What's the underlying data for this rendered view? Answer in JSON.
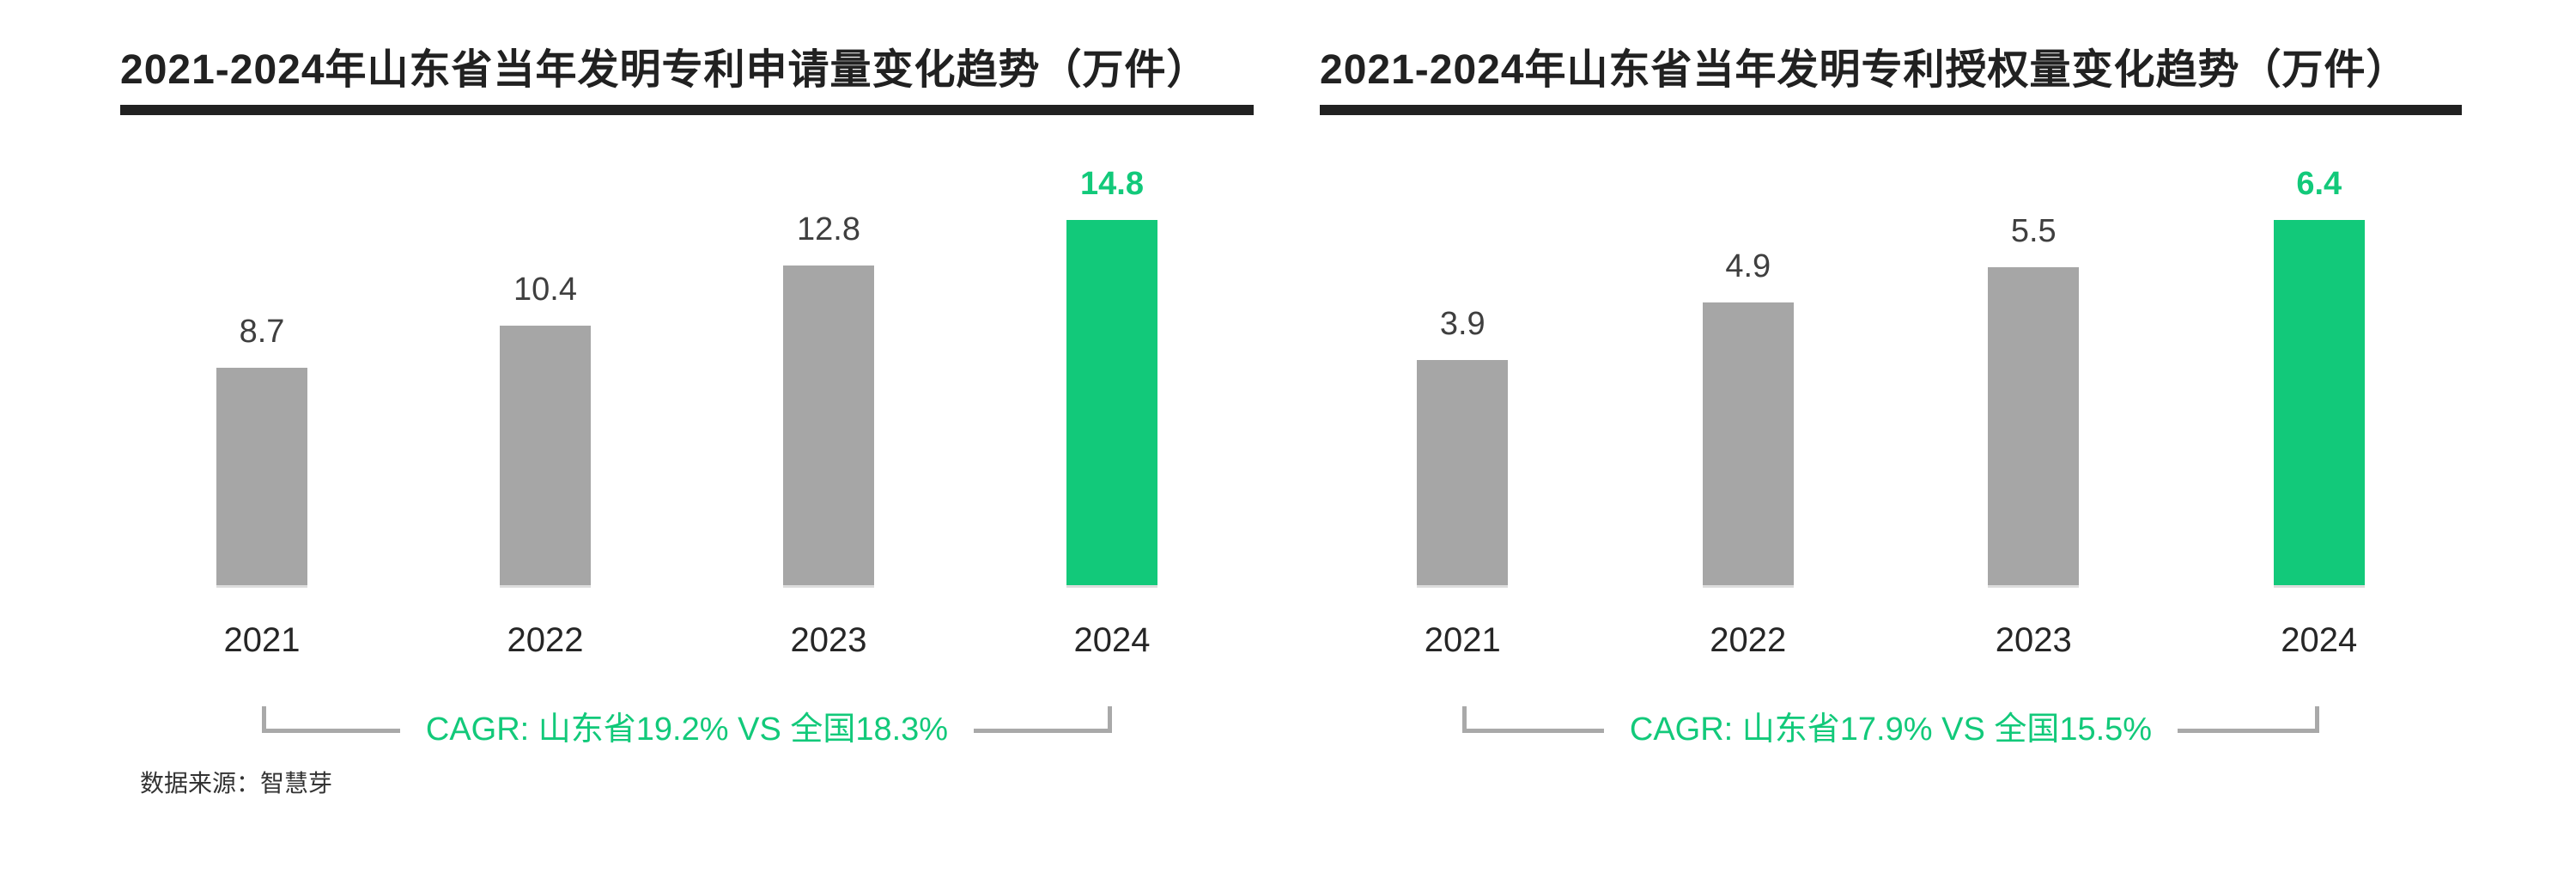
{
  "source": "数据来源：智慧芽",
  "colors": {
    "bar_gray": "#a6a6a6",
    "highlight_green": "#12c97a",
    "bracket_gray": "#a9a9a9",
    "title_black": "#212121",
    "value_label_gray": "#3f3f3f"
  },
  "chart_data": [
    {
      "type": "bar",
      "title": "2021-2024年山东省当年发明专利申请量变化趋势（万件）",
      "categories": [
        "2021",
        "2022",
        "2023",
        "2024"
      ],
      "values": [
        8.7,
        10.4,
        12.8,
        14.8
      ],
      "value_labels_shown": true,
      "highlight_index": 3,
      "bar_color": "#a6a6a6",
      "highlight_color": "#12c97a",
      "bracket_color": "#a9a9a9",
      "cagr_note": "CAGR: 山东省19.2% VS 全国18.3%",
      "axis": "none",
      "grid": false,
      "legend": false,
      "ylim": [
        0,
        14.8
      ]
    },
    {
      "type": "bar",
      "title": "2021-2024年山东省当年发明专利授权量变化趋势（万件）",
      "categories": [
        "2021",
        "2022",
        "2023",
        "2024"
      ],
      "values": [
        3.9,
        4.9,
        5.5,
        6.4
      ],
      "value_labels_shown": true,
      "highlight_index": 3,
      "bar_color": "#a6a6a6",
      "highlight_color": "#12c97a",
      "bracket_color": "#a9a9a9",
      "cagr_note": "CAGR: 山东省17.9% VS 全国15.5%",
      "axis": "none",
      "grid": false,
      "legend": false,
      "ylim": [
        0,
        6.4
      ]
    }
  ]
}
